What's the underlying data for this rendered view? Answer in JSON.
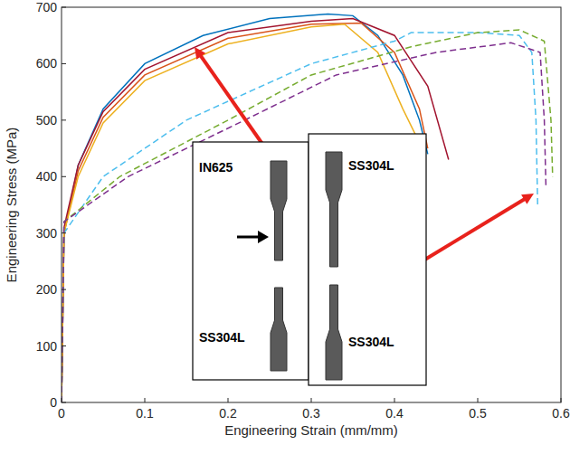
{
  "chart_data": {
    "type": "line",
    "xlabel": "Engineering Strain (mm/mm)",
    "ylabel": "Engineering Stress (MPa)",
    "xlim": [
      0,
      0.6
    ],
    "ylim": [
      0,
      700
    ],
    "xticks": [
      0,
      0.1,
      0.2,
      0.3,
      0.4,
      0.5,
      0.6
    ],
    "yticks": [
      0,
      100,
      200,
      300,
      400,
      500,
      600,
      700
    ],
    "grid": false,
    "annotations": [
      "IN625",
      "SS304L",
      "SS304L",
      "SS304L"
    ],
    "series": [
      {
        "color": "#0072bd",
        "line_style": "solid",
        "x": [
          0,
          0.003,
          0.02,
          0.05,
          0.1,
          0.17,
          0.25,
          0.32,
          0.35,
          0.38,
          0.41,
          0.43,
          0.44
        ],
        "values": [
          0,
          300,
          420,
          520,
          600,
          650,
          680,
          688,
          685,
          650,
          580,
          500,
          440
        ]
      },
      {
        "color": "#a2142f",
        "line_style": "solid",
        "x": [
          0,
          0.003,
          0.02,
          0.05,
          0.1,
          0.2,
          0.3,
          0.35,
          0.4,
          0.44,
          0.465
        ],
        "values": [
          0,
          310,
          420,
          515,
          590,
          655,
          675,
          680,
          650,
          560,
          430
        ]
      },
      {
        "color": "#d95319",
        "line_style": "solid",
        "x": [
          0,
          0.003,
          0.02,
          0.05,
          0.1,
          0.2,
          0.3,
          0.36,
          0.4,
          0.43,
          0.44
        ],
        "values": [
          0,
          300,
          410,
          505,
          580,
          645,
          670,
          672,
          620,
          520,
          450
        ]
      },
      {
        "color": "#edb120",
        "line_style": "solid",
        "x": [
          0,
          0.003,
          0.02,
          0.05,
          0.1,
          0.2,
          0.3,
          0.34,
          0.38,
          0.41,
          0.43
        ],
        "values": [
          0,
          300,
          400,
          495,
          570,
          635,
          665,
          670,
          620,
          520,
          460
        ]
      },
      {
        "color": "#4dbeee",
        "line_style": "dashed",
        "x": [
          0,
          0.003,
          0.05,
          0.15,
          0.3,
          0.4,
          0.42,
          0.5,
          0.55,
          0.565,
          0.57,
          0.572
        ],
        "values": [
          0,
          300,
          400,
          500,
          600,
          640,
          655,
          655,
          650,
          620,
          500,
          350
        ]
      },
      {
        "color": "#77ac30",
        "line_style": "dashed",
        "x": [
          0,
          0.003,
          0.07,
          0.2,
          0.3,
          0.42,
          0.5,
          0.55,
          0.58,
          0.588,
          0.59
        ],
        "values": [
          0,
          320,
          400,
          500,
          580,
          630,
          655,
          660,
          640,
          500,
          400
        ]
      },
      {
        "color": "#7e2f8e",
        "line_style": "dashed",
        "x": [
          0,
          0.003,
          0.08,
          0.22,
          0.33,
          0.45,
          0.54,
          0.575,
          0.58,
          0.582
        ],
        "values": [
          0,
          320,
          400,
          500,
          580,
          620,
          637,
          620,
          500,
          380
        ]
      }
    ]
  }
}
